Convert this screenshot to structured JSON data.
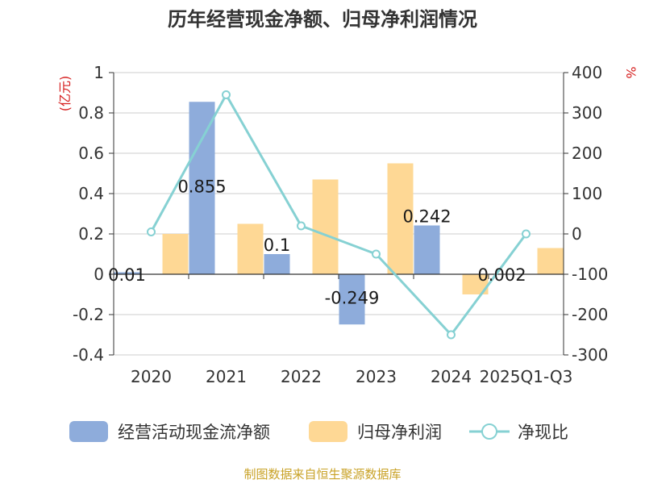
{
  "title": "历年经营现金净额、归母净利润情况",
  "source_note": "制图数据来自恒生聚源数据库",
  "y_left_unit": "(亿元)",
  "y_right_unit": "%",
  "legend": [
    {
      "label": "经营活动现金流净额",
      "kind": "bar",
      "color": "#8eacdb"
    },
    {
      "label": "归母净利润",
      "kind": "bar",
      "color": "#fed895"
    },
    {
      "label": "净现比",
      "kind": "line",
      "color": "#86d1d3"
    }
  ],
  "chart_data": {
    "type": "bar",
    "title": "历年经营现金净额、归母净利润情况",
    "categories": [
      "2020",
      "2021",
      "2022",
      "2023",
      "2024",
      "2025Q1-Q3"
    ],
    "ylim": [
      -0.4,
      1
    ],
    "y_ticks": [
      -0.4,
      -0.2,
      0,
      0.2,
      0.4,
      0.6,
      0.8,
      1
    ],
    "y_tick_labels": [
      "-0.4",
      "-0.2",
      "0",
      "0.2",
      "0.4",
      "0.6",
      "0.8",
      "1"
    ],
    "y2lim": [
      -300,
      400
    ],
    "y2_ticks": [
      -300,
      -200,
      -100,
      0,
      100,
      200,
      300,
      400
    ],
    "y2_tick_labels": [
      "-300",
      "-200",
      "-100",
      "0",
      "100",
      "200",
      "300",
      "400"
    ],
    "grid": true,
    "legend_position": "bottom",
    "series": [
      {
        "name": "经营活动现金流净额",
        "type": "bar",
        "axis": "left",
        "color": "#8eacdb",
        "values": [
          0.01,
          0.855,
          0.1,
          -0.249,
          0.242,
          0.002
        ],
        "labels": [
          "0.01",
          "0.855",
          "0.1",
          "-0.249",
          "0.242",
          "0.002"
        ]
      },
      {
        "name": "归母净利润",
        "type": "bar",
        "axis": "left",
        "color": "#fed895",
        "values": [
          0.2,
          0.25,
          0.47,
          0.55,
          -0.1,
          0.13
        ]
      },
      {
        "name": "净现比",
        "type": "line",
        "axis": "right",
        "color": "#86d1d3",
        "values": [
          5,
          345,
          20,
          -50,
          -250,
          0
        ]
      }
    ]
  }
}
